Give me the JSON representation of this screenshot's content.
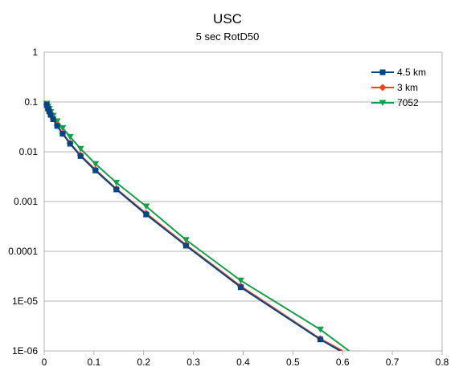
{
  "chart_data": {
    "type": "line",
    "title": "USC",
    "subtitle": "5 sec RotD50",
    "xlabel": "",
    "ylabel": "",
    "xlim": [
      0,
      0.8
    ],
    "ylim": [
      1e-06,
      1
    ],
    "yscale": "log",
    "grid": "horizontal",
    "legend_position": "top-right",
    "x_ticks": [
      "0",
      "0.1",
      "0.2",
      "0.3",
      "0.4",
      "0.5",
      "0.6",
      "0.7",
      "0.8"
    ],
    "y_ticks": [
      "1E-06",
      "1E-05",
      "0.0001",
      "0.001",
      "0.01",
      "0.1",
      "1"
    ],
    "series": [
      {
        "name": "4.5 km",
        "color": "#004586",
        "marker": "square",
        "x": [
          0.005,
          0.0075,
          0.01,
          0.013,
          0.018,
          0.026,
          0.037,
          0.052,
          0.073,
          0.103,
          0.145,
          0.205,
          0.285,
          0.395,
          0.555,
          0.595
        ],
        "y": [
          0.088,
          0.074,
          0.065,
          0.055,
          0.045,
          0.033,
          0.023,
          0.0145,
          0.0082,
          0.0042,
          0.00175,
          0.00055,
          0.00013,
          1.9e-05,
          1.7e-06,
          1e-06
        ]
      },
      {
        "name": "3 km",
        "color": "#ff420e",
        "marker": "diamond",
        "x": [
          0.005,
          0.0075,
          0.01,
          0.013,
          0.018,
          0.026,
          0.037,
          0.052,
          0.073,
          0.103,
          0.145,
          0.205,
          0.285,
          0.395,
          0.555,
          0.6
        ],
        "y": [
          0.089,
          0.075,
          0.066,
          0.056,
          0.046,
          0.034,
          0.0235,
          0.015,
          0.0085,
          0.0044,
          0.0018,
          0.00058,
          0.000135,
          2e-05,
          1.75e-06,
          1e-06
        ]
      },
      {
        "name": "7052",
        "color": "#14a04a",
        "marker": "triangle-down",
        "x": [
          0.005,
          0.0075,
          0.01,
          0.013,
          0.018,
          0.026,
          0.037,
          0.052,
          0.073,
          0.103,
          0.145,
          0.205,
          0.285,
          0.395,
          0.555,
          0.613
        ],
        "y": [
          0.093,
          0.082,
          0.073,
          0.063,
          0.053,
          0.041,
          0.03,
          0.02,
          0.0115,
          0.0057,
          0.0024,
          0.0008,
          0.00017,
          2.6e-05,
          2.7e-06,
          1e-06
        ]
      }
    ]
  }
}
